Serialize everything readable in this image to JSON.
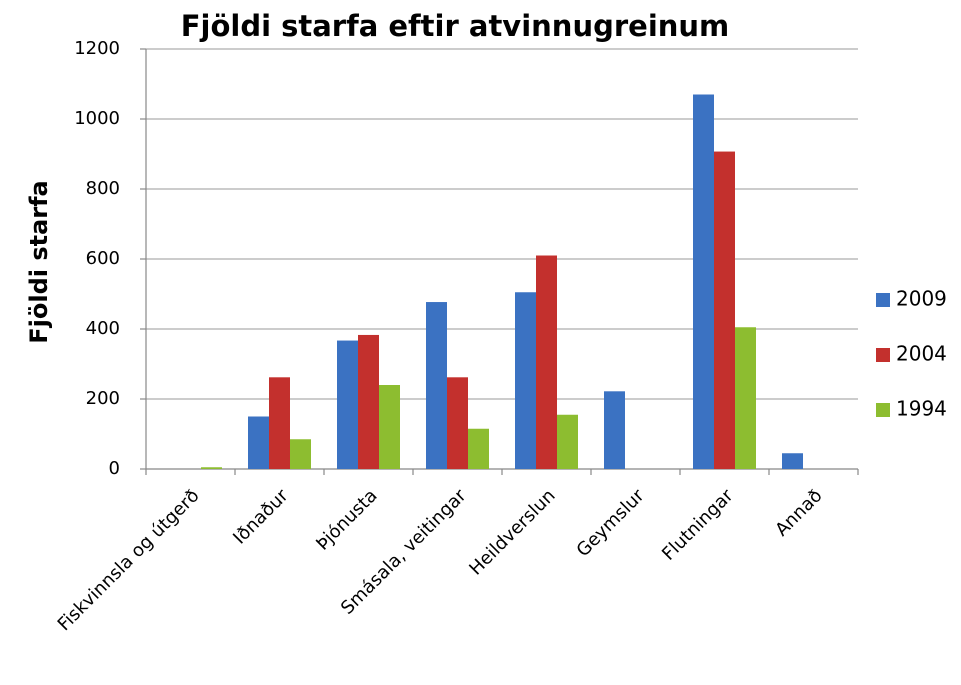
{
  "chart_data": {
    "type": "bar",
    "title": "Fjöldi starfa eftir atvinnugreinum",
    "y_label": "Fjöldi starfa",
    "categories": [
      "Fiskvinnsla og útgerð",
      "Iðnaður",
      "Þjónusta",
      "Smásala, veitingar",
      "Heildverslun",
      "Geymslur",
      "Flutningar",
      "Annað"
    ],
    "series": [
      {
        "name": "2009",
        "color": "#3b72c2",
        "values": [
          0,
          150,
          367,
          477,
          505,
          222,
          1070,
          45
        ]
      },
      {
        "name": "2004",
        "color": "#c3302d",
        "values": [
          0,
          262,
          383,
          262,
          610,
          0,
          907,
          0
        ]
      },
      {
        "name": "1994",
        "color": "#8dbd30",
        "values": [
          5,
          85,
          240,
          115,
          155,
          0,
          405,
          0
        ]
      }
    ],
    "ylim": [
      0,
      1200
    ],
    "yticks": [
      0,
      200,
      400,
      600,
      800,
      1000,
      1200
    ],
    "grid": true,
    "legend": "right"
  }
}
